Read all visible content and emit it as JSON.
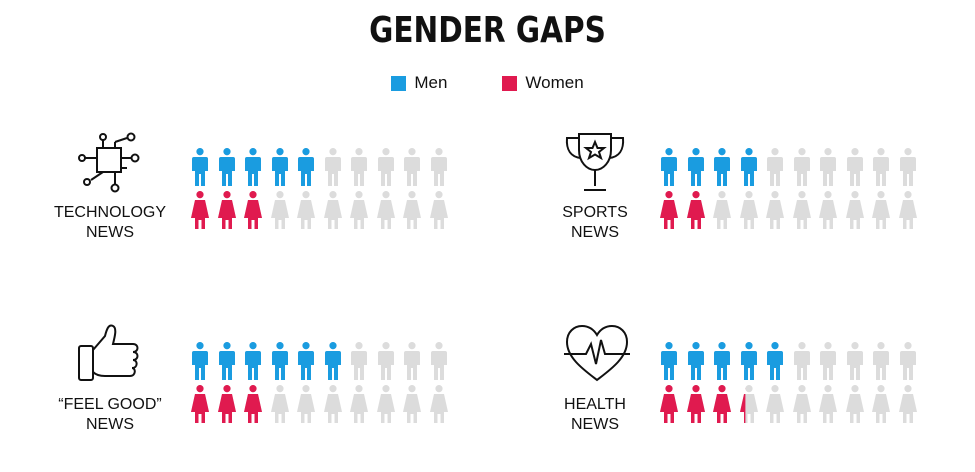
{
  "title": "GENDER GAPS",
  "legend": {
    "men": {
      "label": "Men",
      "color": "#1a9ce0"
    },
    "women": {
      "label": "Women",
      "color": "#e01a4f"
    }
  },
  "colors": {
    "empty": "#dcdcdc"
  },
  "chart_data": {
    "type": "pictogram",
    "title": "GENDER GAPS",
    "icons_per_row": 10,
    "series": [
      {
        "name": "Men",
        "color": "#1a9ce0"
      },
      {
        "name": "Women",
        "color": "#e01a4f"
      }
    ],
    "categories": [
      {
        "label_line1": "TECHNOLOGY",
        "label_line2": "NEWS",
        "icon": "circuit-chip-icon",
        "men": 5,
        "women": 3
      },
      {
        "label_line1": "SPORTS",
        "label_line2": "NEWS",
        "icon": "trophy-icon",
        "men": 4,
        "women": 2
      },
      {
        "label_line1": "“FEEL GOOD”",
        "label_line2": "NEWS",
        "icon": "thumbs-up-icon",
        "men": 6,
        "women": 3
      },
      {
        "label_line1": "HEALTH",
        "label_line2": "NEWS",
        "icon": "heart-pulse-icon",
        "men": 5,
        "women": 3.3
      }
    ]
  }
}
